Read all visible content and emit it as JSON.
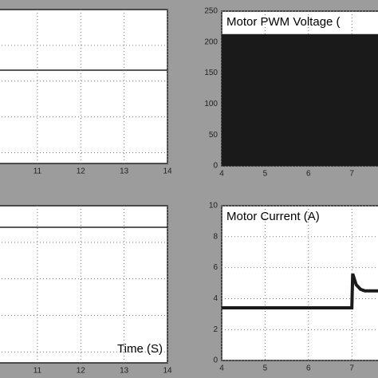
{
  "chart_data": [
    {
      "type": "scope",
      "xlim": [
        10.1,
        14
      ],
      "xticks": [
        11,
        12,
        13,
        14
      ]
    },
    {
      "type": "area",
      "title": "Motor PWM Voltage (",
      "xlim": [
        4,
        7.64
      ],
      "xticks": [
        4,
        5,
        6,
        7
      ],
      "ylim": [
        0,
        250
      ],
      "yticks": [
        0,
        50,
        100,
        150,
        200,
        250
      ],
      "series": [
        {
          "x": [
            4,
            7.64
          ],
          "values": [
            213,
            213
          ],
          "color": "#1a1a1a"
        }
      ]
    },
    {
      "type": "scope",
      "xlabel": "Time (S)",
      "xlim": [
        10.1,
        14
      ],
      "xticks": [
        11,
        12,
        13,
        14
      ]
    },
    {
      "type": "line",
      "title": "Motor Current (A)",
      "xlim": [
        4,
        7.64
      ],
      "xticks": [
        4,
        5,
        6,
        7
      ],
      "ylim": [
        0,
        10
      ],
      "yticks": [
        0,
        2,
        4,
        6,
        8,
        10
      ],
      "series": [
        {
          "x": [
            4,
            7,
            7.02,
            7.1,
            7.2,
            7.3,
            7.5,
            7.64
          ],
          "values": [
            3.4,
            3.4,
            5.6,
            4.9,
            4.6,
            4.5,
            4.5,
            4.5
          ],
          "color": "#1a1a1a"
        }
      ]
    }
  ]
}
